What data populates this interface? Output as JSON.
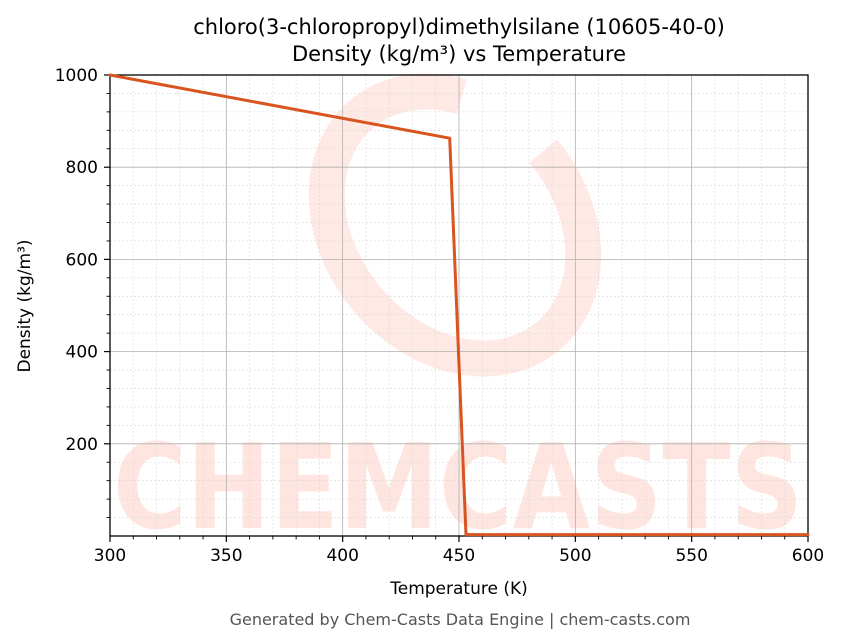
{
  "chart_data": {
    "type": "line",
    "title": "chloro(3-chloropropyl)dimethylsilane (10605-40-0)",
    "subtitle": "Density (kg/m³) vs Temperature",
    "xlabel": "Temperature (K)",
    "ylabel": "Density (kg/m³)",
    "xlim": [
      300,
      600
    ],
    "ylim": [
      0,
      1000
    ],
    "xticks": [
      300,
      350,
      400,
      450,
      500,
      550,
      600
    ],
    "yticks": [
      200,
      400,
      600,
      800,
      1000
    ],
    "grid": true,
    "series": [
      {
        "color": "#d9541e",
        "x": [
          300,
          446,
          453,
          600
        ],
        "y": [
          1003,
          863,
          3,
          3
        ]
      }
    ]
  },
  "footer": "Generated by Chem-Casts Data Engine | chem-casts.com",
  "watermark": "CHEMCASTS",
  "colors": {
    "line": "#d9541e",
    "watermark": "#ff6b50",
    "grid": "#b0b0b0"
  }
}
